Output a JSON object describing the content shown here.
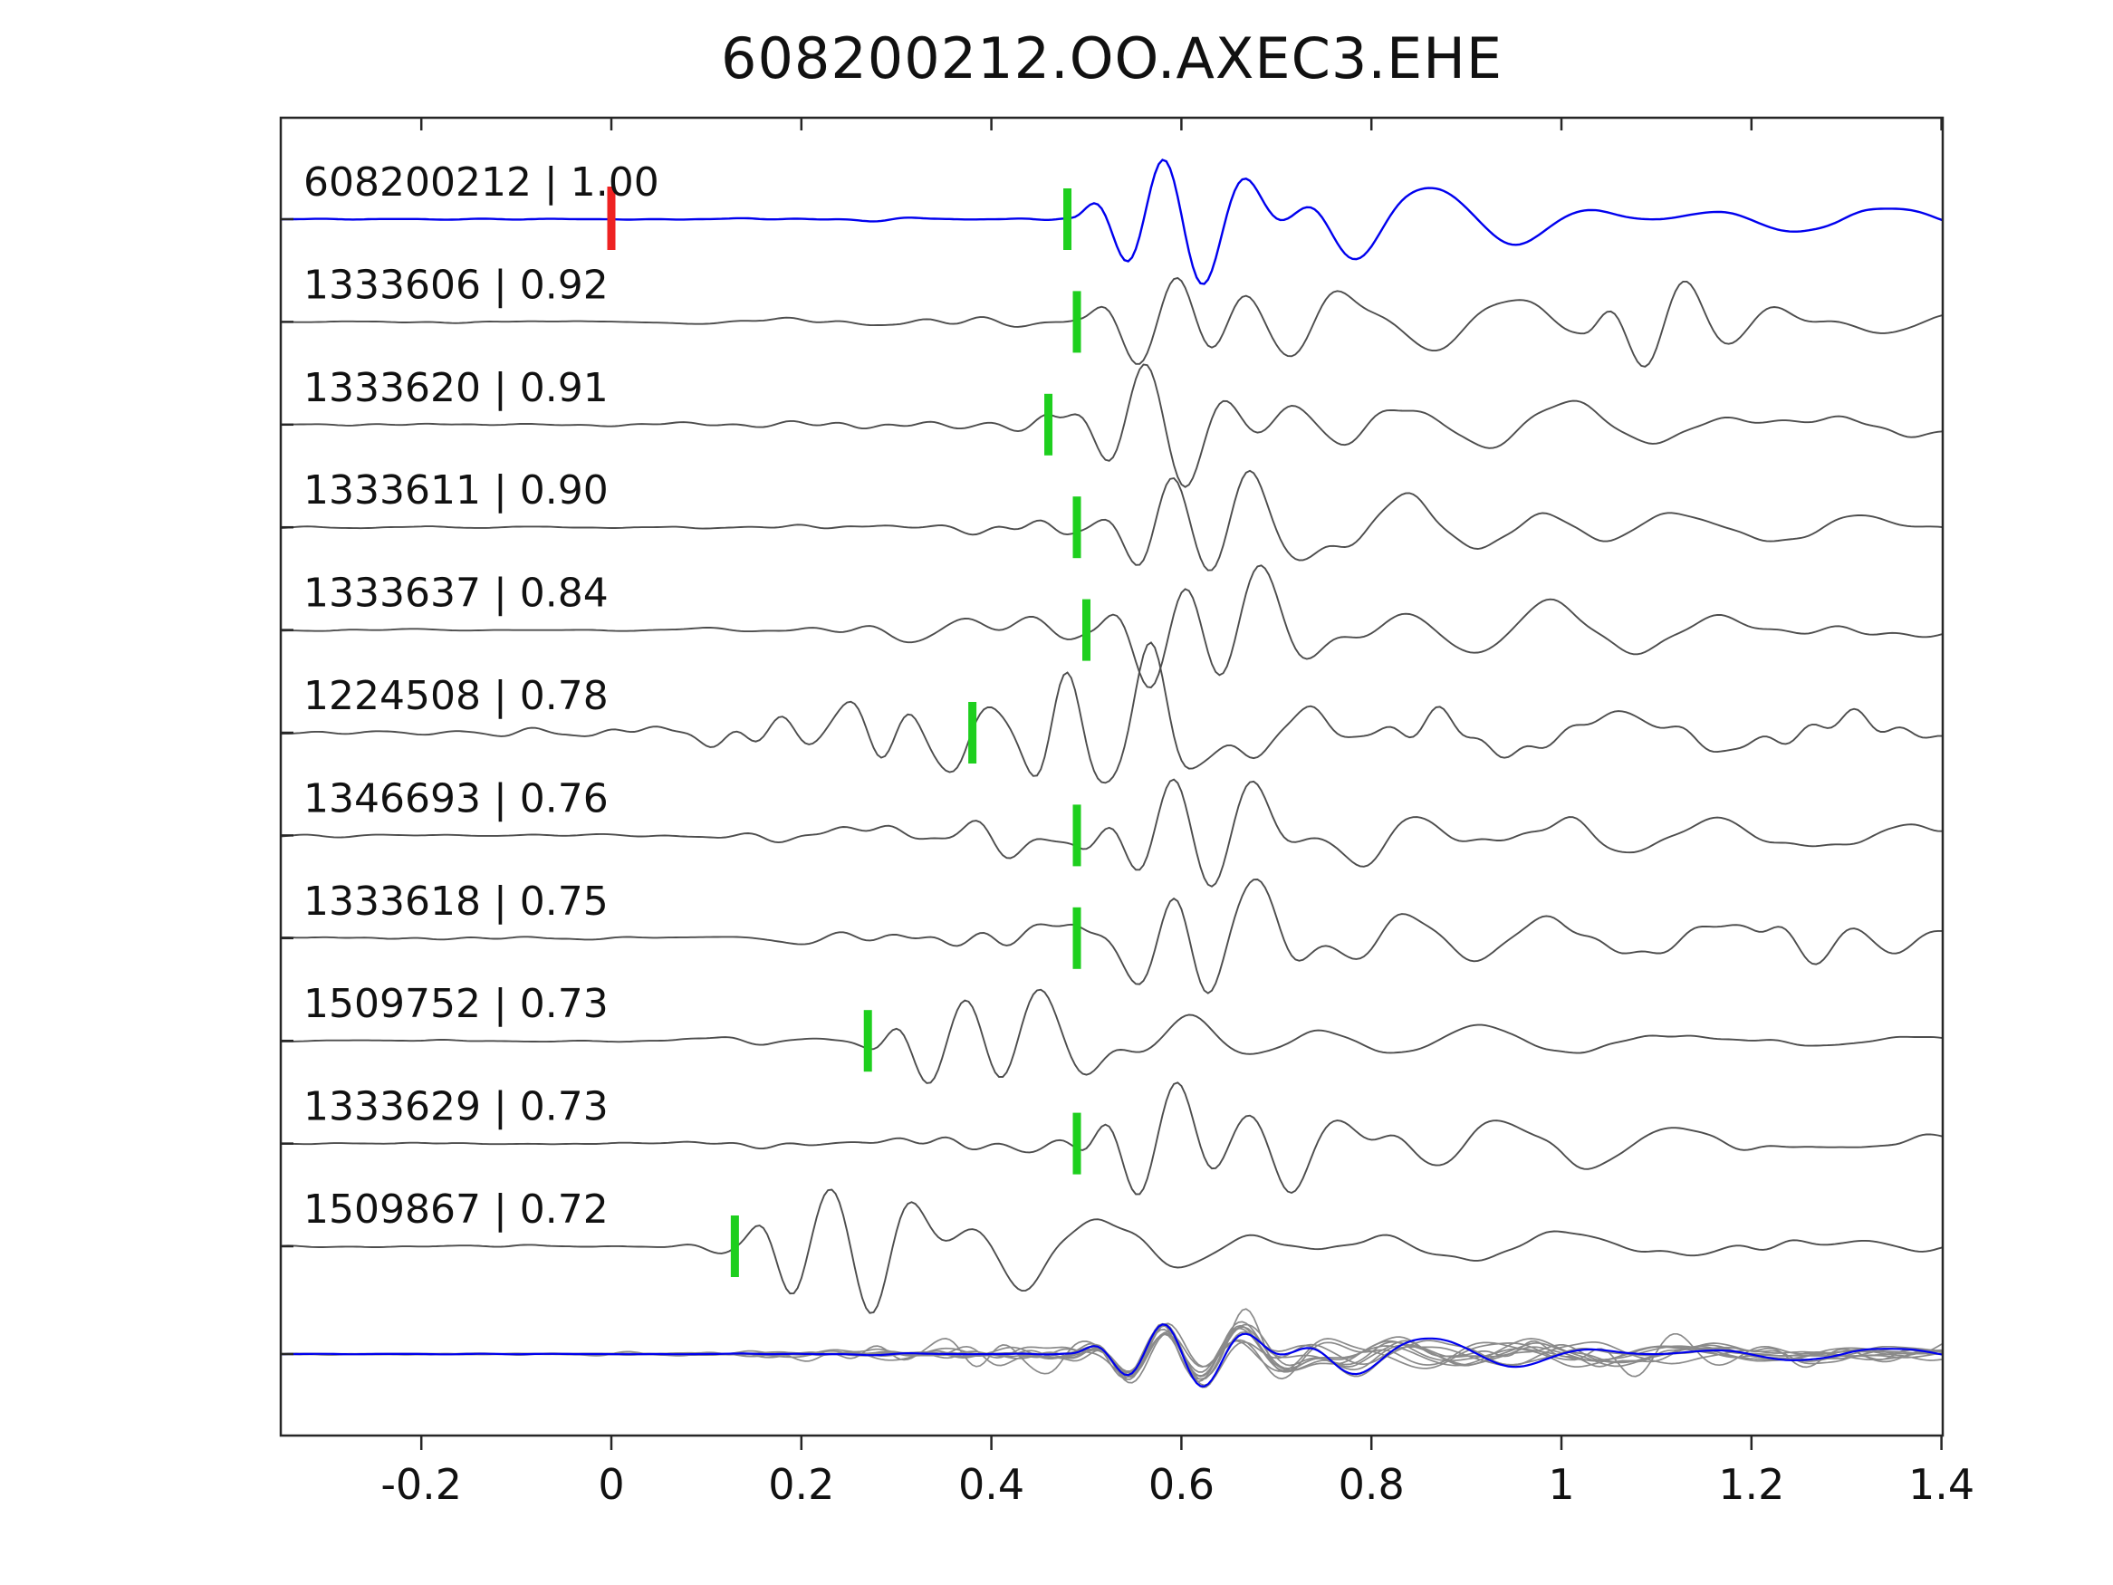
{
  "chart_data": {
    "type": "line",
    "title": "608200212.OO.AXEC3.EHE",
    "xlabel": "",
    "ylabel": "",
    "xlim": [
      -0.35,
      1.4
    ],
    "grid": false,
    "legend": "none",
    "x_ticks": [
      {
        "value": -0.2,
        "label": "-0.2"
      },
      {
        "value": 0,
        "label": "0"
      },
      {
        "value": 0.2,
        "label": "0.2"
      },
      {
        "value": 0.4,
        "label": "0.4"
      },
      {
        "value": 0.6,
        "label": "0.6"
      },
      {
        "value": 0.8,
        "label": "0.8"
      },
      {
        "value": 1,
        "label": "1"
      },
      {
        "value": 1.2,
        "label": "1.2"
      },
      {
        "value": 1.4,
        "label": "1.4"
      }
    ],
    "colors": {
      "template_trace": "#0000ee",
      "gray_trace": "#4d4d4d",
      "pick_marker": "#1ecf1e",
      "zero_marker": "#ee2222",
      "border": "#262626",
      "text": "#111111"
    },
    "traces": [
      {
        "id": "608200212",
        "cc": "1.00",
        "label": "608200212 | 1.00",
        "pick_time": 0.48,
        "zero_marker_time": 0.0,
        "role": "template"
      },
      {
        "id": "1333606",
        "cc": "0.92",
        "label": "1333606 | 0.92",
        "pick_time": 0.49,
        "role": "match"
      },
      {
        "id": "1333620",
        "cc": "0.91",
        "label": "1333620 | 0.91",
        "pick_time": 0.46,
        "role": "match"
      },
      {
        "id": "1333611",
        "cc": "0.90",
        "label": "1333611 | 0.90",
        "pick_time": 0.49,
        "role": "match"
      },
      {
        "id": "1333637",
        "cc": "0.84",
        "label": "1333637 | 0.84",
        "pick_time": 0.5,
        "role": "match"
      },
      {
        "id": "1224508",
        "cc": "0.78",
        "label": "1224508 | 0.78",
        "pick_time": 0.38,
        "role": "match"
      },
      {
        "id": "1346693",
        "cc": "0.76",
        "label": "1346693 | 0.76",
        "pick_time": 0.49,
        "role": "match"
      },
      {
        "id": "1333618",
        "cc": "0.75",
        "label": "1333618 | 0.75",
        "pick_time": 0.49,
        "role": "match"
      },
      {
        "id": "1509752",
        "cc": "0.73",
        "label": "1509752 | 0.73",
        "pick_time": 0.27,
        "role": "match"
      },
      {
        "id": "1333629",
        "cc": "0.73",
        "label": "1333629 | 0.73",
        "pick_time": 0.49,
        "role": "match"
      },
      {
        "id": "1509867",
        "cc": "0.72",
        "label": "1509867 | 0.72",
        "pick_time": 0.13,
        "role": "match"
      }
    ],
    "overlay_row": {
      "description": "all matched traces aligned on their picks and overlaid with the blue template trace"
    }
  }
}
